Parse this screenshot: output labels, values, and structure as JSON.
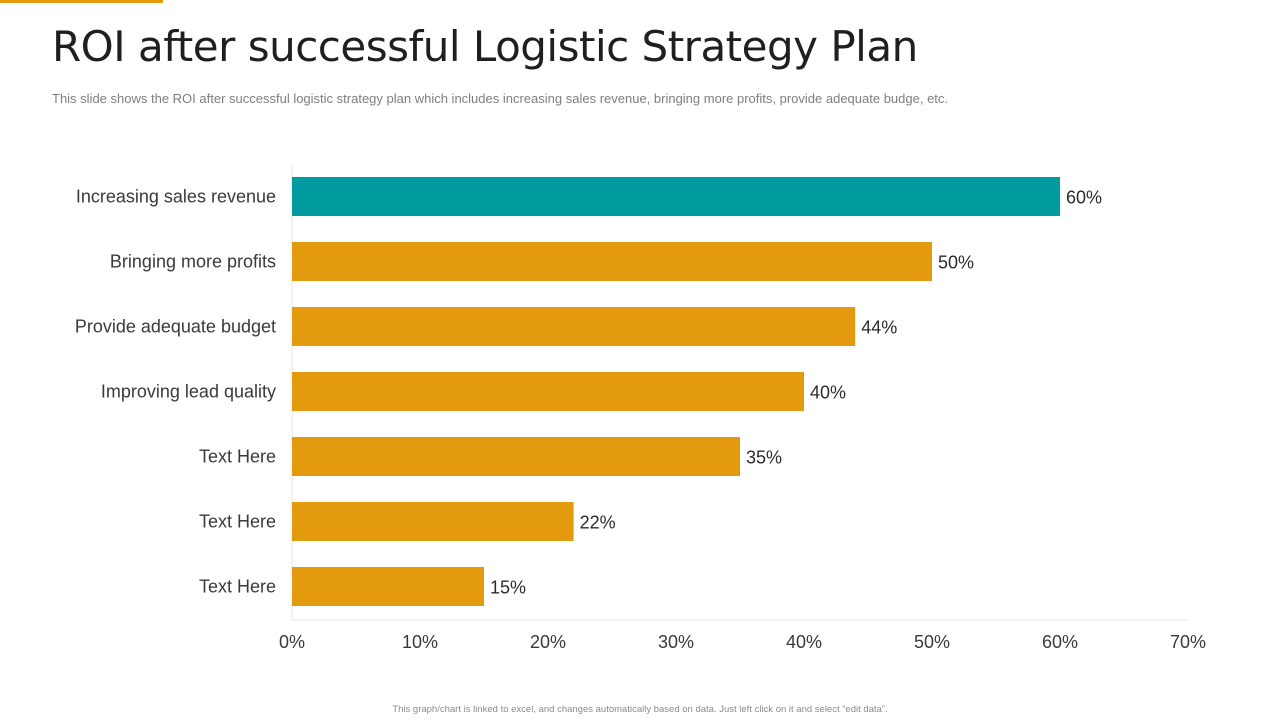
{
  "slide": {
    "title": "ROI after successful Logistic Strategy Plan",
    "subtitle": "This slide shows the ROI after successful logistic strategy plan which includes increasing sales revenue, bringing more profits, provide adequate budge, etc.",
    "footnote": "This graph/chart is linked to excel, and changes automatically based on data. Just left click on it and select “edit data”.",
    "accent_color": "#E39A0F"
  },
  "chart_data": {
    "type": "bar",
    "orientation": "horizontal",
    "categories": [
      "Increasing sales revenue",
      "Bringing more profits",
      "Provide adequate budget",
      "Improving lead quality",
      "Text Here",
      "Text Here",
      "Text Here"
    ],
    "values": [
      60,
      50,
      44,
      40,
      35,
      22,
      15
    ],
    "value_labels": [
      "60%",
      "50%",
      "44%",
      "40%",
      "35%",
      "22%",
      "15%"
    ],
    "bar_colors": [
      "#009B9E",
      "#E39A0F",
      "#E39A0F",
      "#E39A0F",
      "#E39A0F",
      "#E39A0F",
      "#E39A0F"
    ],
    "xlim": [
      0,
      70
    ],
    "x_ticks": [
      0,
      10,
      20,
      30,
      40,
      50,
      60,
      70
    ],
    "x_tick_labels": [
      "0%",
      "10%",
      "20%",
      "30%",
      "40%",
      "50%",
      "60%",
      "70%"
    ],
    "title": "",
    "xlabel": "",
    "ylabel": "",
    "grid": false,
    "legend": "none"
  }
}
